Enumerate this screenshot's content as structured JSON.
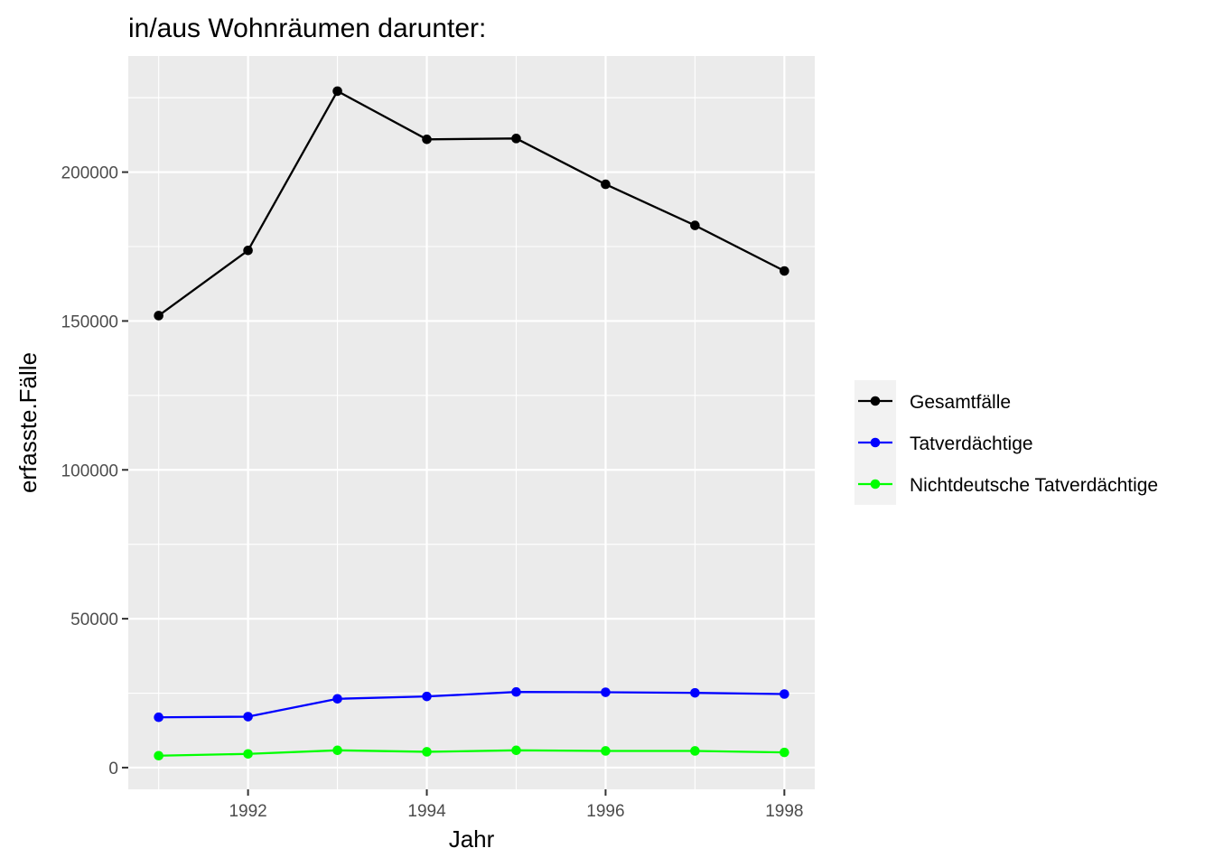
{
  "chart_data": {
    "type": "line",
    "title": "in/aus Wohnräumen darunter:",
    "xlabel": "Jahr",
    "ylabel": "erfasste.Fälle",
    "x": [
      1991,
      1992,
      1993,
      1994,
      1995,
      1996,
      1997,
      1998
    ],
    "x_ticks": [
      "1992",
      "1994",
      "1996",
      "1998"
    ],
    "y_ticks": [
      "0",
      "50000",
      "100000",
      "150000",
      "200000"
    ],
    "xlim": [
      1990.66,
      1998.34
    ],
    "ylim": [
      -7300,
      239000
    ],
    "grid": true,
    "legend_position": "right",
    "series": [
      {
        "name": "Gesamtfälle",
        "color": "#000000",
        "values": [
          151800,
          173700,
          227200,
          211000,
          211300,
          195900,
          182100,
          166800
        ]
      },
      {
        "name": "Tatverdächtige",
        "color": "#0000ff",
        "values": [
          16900,
          17100,
          23100,
          23900,
          25400,
          25300,
          25100,
          24700
        ]
      },
      {
        "name": "Nichtdeutsche Tatverdächtige",
        "color": "#00ff00",
        "values": [
          4000,
          4600,
          5800,
          5300,
          5800,
          5600,
          5600,
          5100
        ]
      }
    ]
  }
}
